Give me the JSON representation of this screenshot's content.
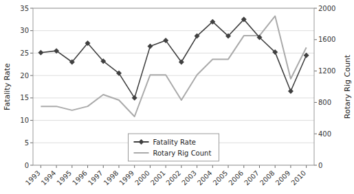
{
  "chart_data": {
    "type": "line",
    "x": [
      1993,
      1994,
      1995,
      1996,
      1997,
      1998,
      1999,
      2000,
      2001,
      2002,
      2003,
      2004,
      2005,
      2006,
      2007,
      2008,
      2009,
      2010
    ],
    "series": [
      {
        "name": "Fatality Rate",
        "color": "#404040",
        "marker": "diamond",
        "line_style": "solid",
        "values": [
          25.1,
          25.5,
          23.0,
          27.2,
          23.2,
          20.5,
          15.0,
          26.5,
          27.8,
          23.0,
          28.8,
          32.0,
          28.8,
          32.5,
          28.5,
          25.2,
          16.5,
          24.5
        ]
      },
      {
        "name": "Rotary Rig Count",
        "color": "#aaaaaa",
        "marker": "none",
        "line_style": "solid",
        "axis": "y2",
        "values": [
          750,
          750,
          700,
          750,
          900,
          830,
          620,
          1150,
          1150,
          830,
          1150,
          1350,
          1350,
          1650,
          1650,
          1900,
          1100,
          1500
        ]
      }
    ],
    "ylabel": "Fatality Rate",
    "y2label": "Rotary Rig Count",
    "xlim": [
      1992.5,
      2010.5
    ],
    "xticks": [
      1993,
      1994,
      1995,
      1996,
      1997,
      1998,
      1999,
      2000,
      2001,
      2002,
      2003,
      2004,
      2005,
      2006,
      2007,
      2008,
      2009,
      2010
    ],
    "ylim": [
      0,
      35
    ],
    "yticks": [
      0,
      5,
      10,
      15,
      20,
      25,
      30,
      35
    ],
    "y2lim": [
      0,
      2000
    ],
    "y2ticks": [
      0,
      400,
      800,
      1200,
      1600,
      2000
    ],
    "grid": true,
    "legend": "bottom"
  }
}
